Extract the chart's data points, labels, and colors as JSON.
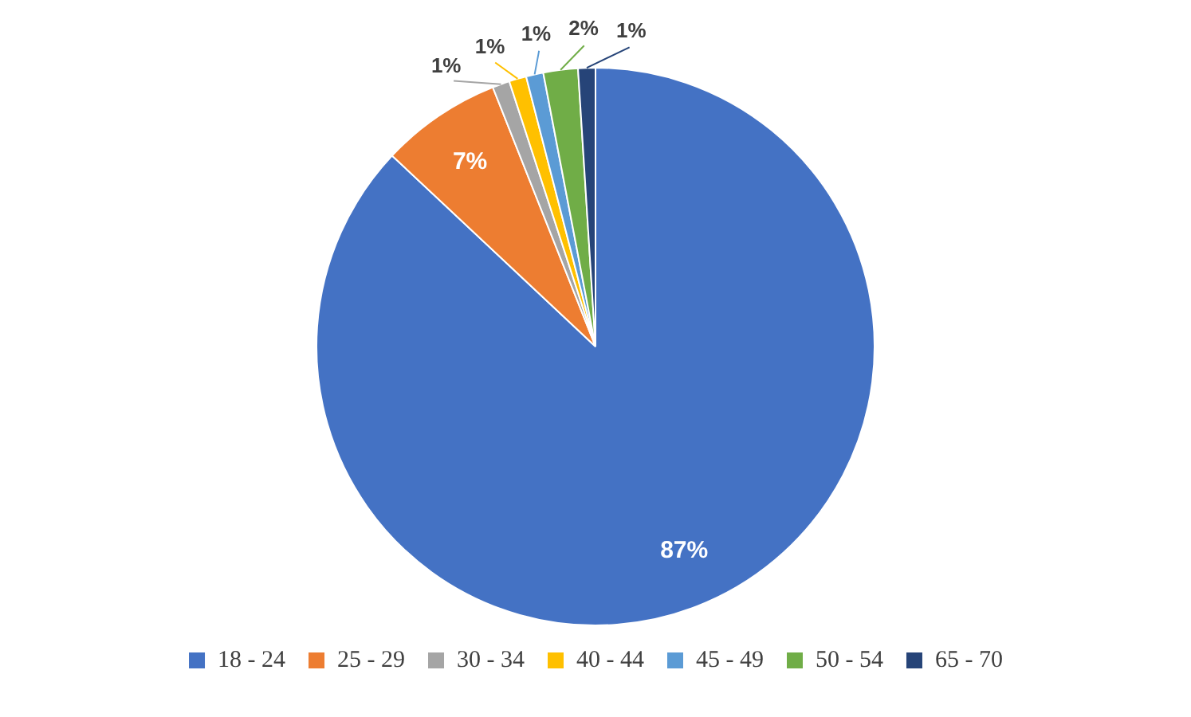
{
  "chart_data": {
    "type": "pie",
    "categories": [
      "18 - 24",
      "25 - 29",
      "30 - 34",
      "40 - 44",
      "45 - 49",
      "50 - 54",
      "65 - 70"
    ],
    "values": [
      87,
      7,
      1,
      1,
      1,
      2,
      1
    ],
    "value_labels": [
      "87%",
      "7%",
      "1%",
      "1%",
      "1%",
      "2%",
      "1%"
    ],
    "colors": [
      "#4472c4",
      "#ed7d31",
      "#a5a5a5",
      "#ffc000",
      "#5b9bd5",
      "#70ad47",
      "#264478"
    ],
    "legend": "bottom"
  }
}
